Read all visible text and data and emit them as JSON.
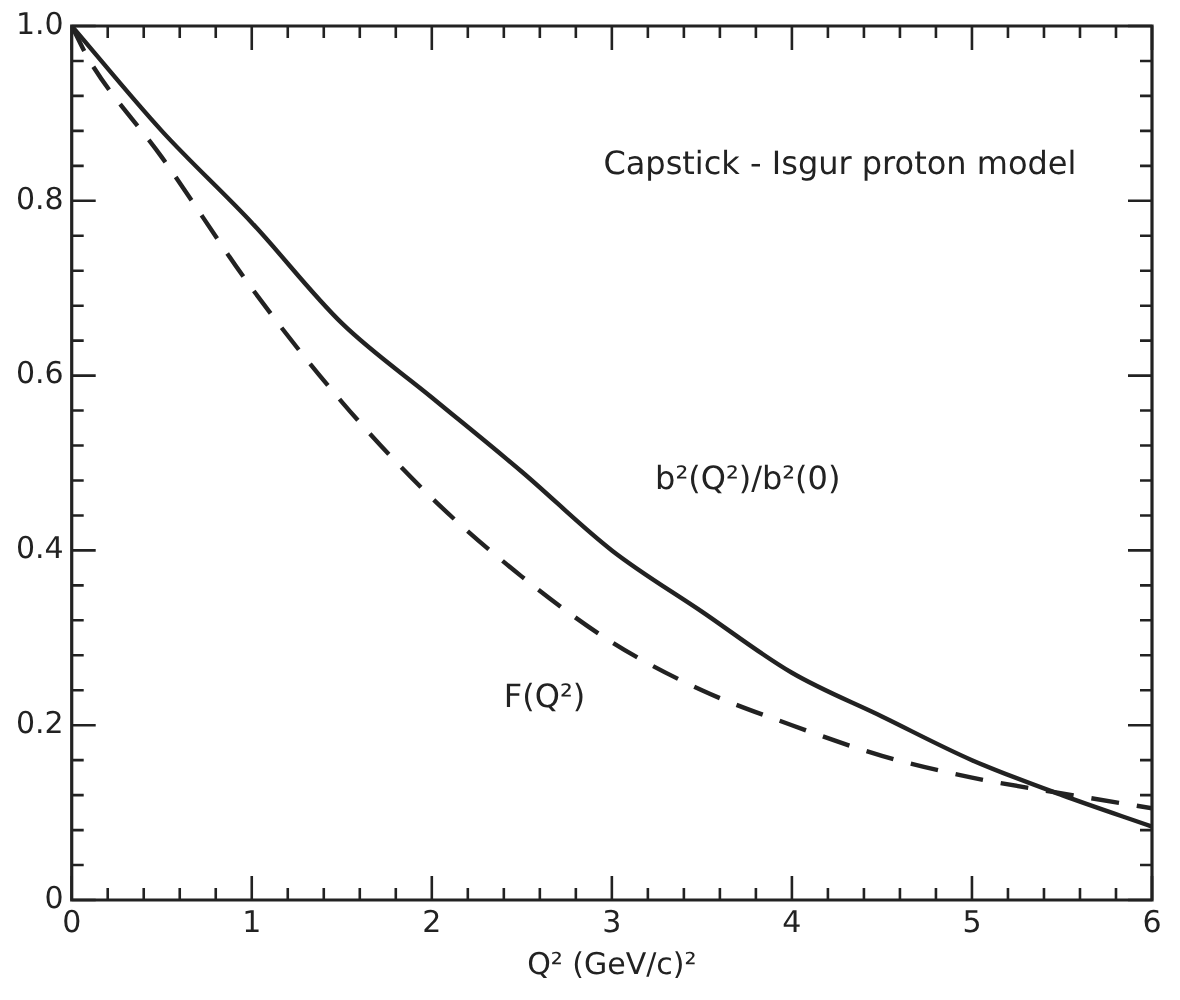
{
  "chart_data": {
    "type": "line",
    "xlabel": "Q² (GeV/c)²",
    "annotations": [
      "Capstick - Isgur proton model"
    ],
    "series": [
      {
        "name": "b²(Q²)/b²(0)",
        "color": "#222222",
        "line_style": "solid",
        "x": [
          0,
          0.5,
          1,
          1.5,
          2,
          2.5,
          3,
          3.5,
          4,
          4.5,
          5,
          5.5,
          6
        ],
        "values": [
          1.0,
          0.88,
          0.775,
          0.66,
          0.575,
          0.49,
          0.4,
          0.33,
          0.26,
          0.21,
          0.16,
          0.12,
          0.084
        ]
      },
      {
        "name": "F(Q²)",
        "color": "#222222",
        "line_style": "dashed",
        "x": [
          0,
          0.1,
          0.5,
          1,
          1.5,
          2,
          2.5,
          3,
          3.5,
          4,
          4.5,
          5,
          5.5,
          6
        ],
        "values": [
          1.0,
          0.96,
          0.85,
          0.7,
          0.57,
          0.46,
          0.37,
          0.295,
          0.24,
          0.2,
          0.165,
          0.14,
          0.122,
          0.105
        ]
      }
    ],
    "xlim": [
      0,
      6
    ],
    "xticks": [
      0,
      {
        "value": 0.2,
        "label": null
      },
      {
        "value": 0.4,
        "label": null
      },
      {
        "value": 0.6,
        "label": null
      },
      {
        "value": 0.8,
        "label": null
      },
      1,
      {
        "value": 1.2,
        "label": null
      },
      {
        "value": 1.4,
        "label": null
      },
      {
        "value": 1.6,
        "label": null
      },
      {
        "value": 1.8,
        "label": null
      },
      2,
      {
        "value": 2.2,
        "label": null
      },
      {
        "value": 2.4,
        "label": null
      },
      {
        "value": 2.6,
        "label": null
      },
      {
        "value": 2.8,
        "label": null
      },
      3,
      {
        "value": 3.2,
        "label": null
      },
      {
        "value": 3.4,
        "label": null
      },
      {
        "value": 3.6,
        "label": null
      },
      {
        "value": 3.8,
        "label": null
      },
      4,
      {
        "value": 4.2,
        "label": null
      },
      {
        "value": 4.4,
        "label": null
      },
      {
        "value": 4.6,
        "label": null
      },
      {
        "value": 4.8,
        "label": null
      },
      5,
      {
        "value": 5.2,
        "label": null
      },
      {
        "value": 5.4,
        "label": null
      },
      {
        "value": 5.6,
        "label": null
      },
      {
        "value": 5.8,
        "label": null
      },
      6
    ],
    "ylim": [
      0,
      1
    ],
    "yticks": [
      0,
      {
        "value": 0.04,
        "label": null
      },
      {
        "value": 0.08,
        "label": null
      },
      {
        "value": 0.12,
        "label": null
      },
      {
        "value": 0.16,
        "label": null
      },
      0.2,
      {
        "value": 0.24,
        "label": null
      },
      {
        "value": 0.28,
        "label": null
      },
      {
        "value": 0.32,
        "label": null
      },
      {
        "value": 0.36,
        "label": null
      },
      0.4,
      {
        "value": 0.44,
        "label": null
      },
      {
        "value": 0.48,
        "label": null
      },
      {
        "value": 0.52,
        "label": null
      },
      {
        "value": 0.56,
        "label": null
      },
      0.6,
      {
        "value": 0.64,
        "label": null
      },
      {
        "value": 0.68,
        "label": null
      },
      {
        "value": 0.72,
        "label": null
      },
      {
        "value": 0.76,
        "label": null
      },
      0.8,
      {
        "value": 0.84,
        "label": null
      },
      {
        "value": 0.88,
        "label": null
      },
      {
        "value": 0.92,
        "label": null
      },
      {
        "value": 0.96,
        "label": null
      },
      {
        "value": 1,
        "label": "1.0"
      }
    ],
    "grid": false,
    "legend": false,
    "marker": "none"
  }
}
